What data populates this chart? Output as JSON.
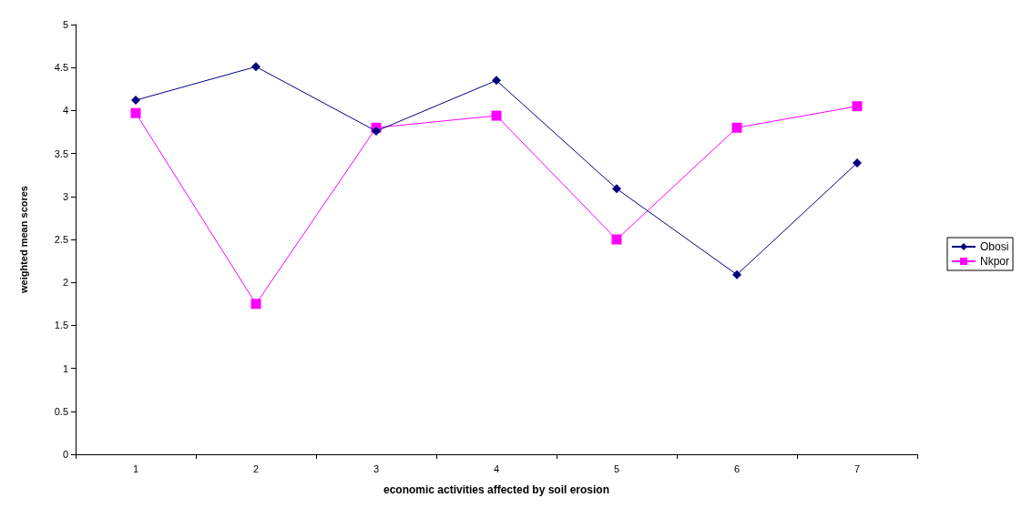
{
  "chart_data": {
    "type": "line",
    "xlabel": "economic activities affected by soil erosion",
    "ylabel": "weighted mean scores",
    "categories": [
      "1",
      "2",
      "3",
      "4",
      "5",
      "6",
      "7"
    ],
    "series": [
      {
        "name": "Obosi",
        "color": "#000080",
        "marker": "diamond",
        "values": [
          4.12,
          4.51,
          3.76,
          4.35,
          3.09,
          2.09,
          3.39
        ]
      },
      {
        "name": "Nkpor",
        "color": "#ff00ff",
        "marker": "square",
        "values": [
          3.97,
          1.75,
          3.8,
          3.94,
          2.5,
          3.8,
          4.05
        ]
      }
    ],
    "ylim": [
      0,
      5
    ],
    "yticks": [
      0,
      0.5,
      1,
      1.5,
      2,
      2.5,
      3,
      3.5,
      4,
      4.5,
      5
    ],
    "grid": false,
    "legend": "right",
    "line_style": "solid"
  }
}
